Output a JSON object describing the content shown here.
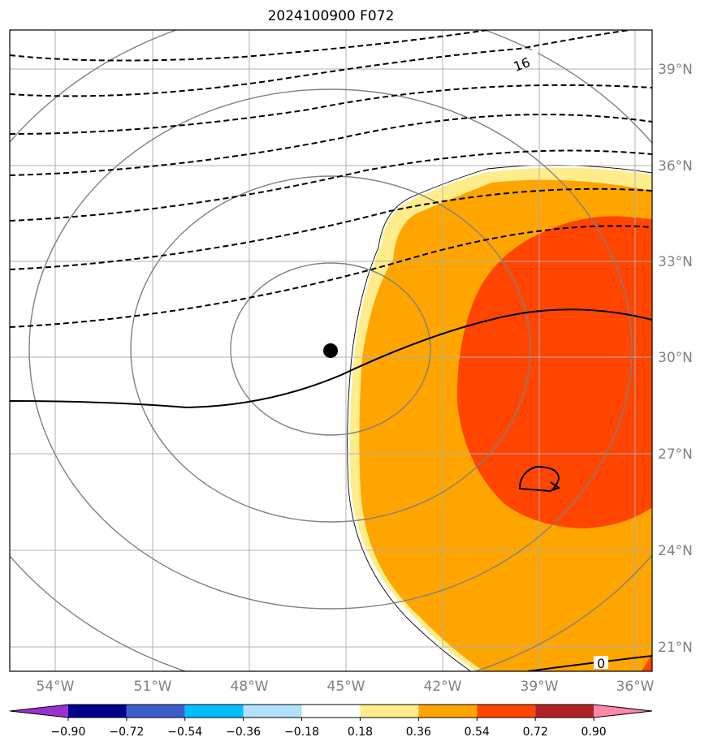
{
  "title": "2024100900 F072",
  "map": {
    "lon_labels": [
      "54°W",
      "51°W",
      "48°W",
      "45°W",
      "42°W",
      "39°W",
      "36°W"
    ],
    "lat_labels": [
      "39°N",
      "36°N",
      "33°N",
      "30°N",
      "27°N",
      "24°N",
      "21°N"
    ],
    "contour_labels": [
      "16",
      "0"
    ],
    "center_marker": "storm-center"
  },
  "colorbar": {
    "colors": [
      "#9932cc",
      "#00008b",
      "#3a5fcd",
      "#00bfff",
      "#b0e2ff",
      "#ffffff",
      "#ffec8b",
      "#ffa500",
      "#ff4500",
      "#b22222",
      "#ff88aa"
    ],
    "labels": [
      "−0.90",
      "−0.72",
      "−0.54",
      "−0.36",
      "−0.18",
      "0.18",
      "0.36",
      "0.54",
      "0.72",
      "0.90"
    ]
  }
}
